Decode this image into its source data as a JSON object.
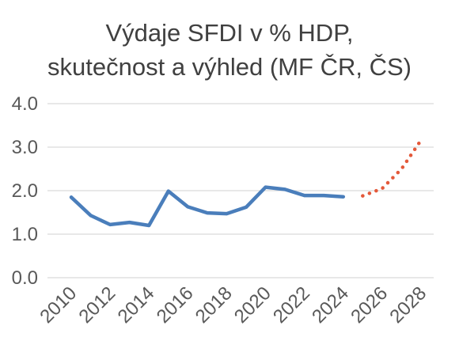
{
  "chart_data": {
    "type": "line",
    "title_lines": [
      "Výdaje SFDI v % HDP,",
      "skutečnost a výhled (MF ČR, ČS)"
    ],
    "xlabel": "",
    "ylabel": "",
    "ylim": [
      0,
      4
    ],
    "yticks": [
      "0.0",
      "1.0",
      "2.0",
      "3.0",
      "4.0"
    ],
    "xlim": [
      2010,
      2028
    ],
    "xticks": [
      "2010",
      "2012",
      "2014",
      "2016",
      "2018",
      "2020",
      "2022",
      "2024",
      "2026",
      "2028"
    ],
    "grid": true,
    "legend": "none",
    "series": [
      {
        "style": "solid",
        "color": "#4a7ebb",
        "x": [
          2010,
          2011,
          2012,
          2013,
          2014,
          2015,
          2016,
          2017,
          2018,
          2019,
          2020,
          2021,
          2022,
          2023,
          2024
        ],
        "values": [
          1.85,
          1.43,
          1.22,
          1.27,
          1.2,
          1.99,
          1.63,
          1.49,
          1.47,
          1.62,
          2.08,
          2.03,
          1.89,
          1.89,
          1.86
        ]
      },
      {
        "style": "dotted",
        "color": "#e4593a",
        "x": [
          2025,
          2026,
          2027,
          2028
        ],
        "values": [
          1.88,
          2.05,
          2.5,
          3.16
        ]
      }
    ]
  }
}
